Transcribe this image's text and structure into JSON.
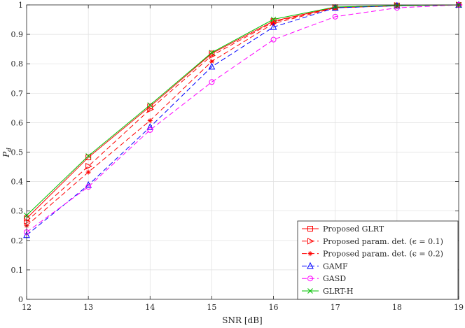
{
  "chart_data": {
    "type": "line",
    "title": "",
    "xlabel": "SNR [dB]",
    "ylabel": "P_d",
    "xlim": [
      12,
      19
    ],
    "ylim": [
      0,
      1
    ],
    "x": [
      12,
      13,
      14,
      15,
      16,
      17,
      18,
      19
    ],
    "xticks": [
      "12",
      "13",
      "14",
      "15",
      "16",
      "17",
      "18",
      "19"
    ],
    "yticks": [
      "0",
      "0.1",
      "0.2",
      "0.3",
      "0.4",
      "0.5",
      "0.6",
      "0.7",
      "0.8",
      "0.9",
      "1"
    ],
    "grid": true,
    "legend_position": "bottom-right",
    "series": [
      {
        "name": "Proposed GLRT",
        "color": "#ff0000",
        "dash": "solid",
        "marker": "square",
        "values": [
          0.275,
          0.482,
          0.655,
          0.835,
          0.945,
          0.992,
          0.998,
          1.0
        ]
      },
      {
        "name": "Proposed param. det. (ϵ = 0.1)",
        "color": "#ff0000",
        "dash": "dashed",
        "marker": "triangle-right",
        "values": [
          0.265,
          0.452,
          0.645,
          0.828,
          0.942,
          0.991,
          0.998,
          1.0
        ]
      },
      {
        "name": "Proposed param. det. (ϵ = 0.2)",
        "color": "#ff0000",
        "dash": "dashed",
        "marker": "asterisk",
        "values": [
          0.25,
          0.432,
          0.607,
          0.808,
          0.937,
          0.99,
          0.997,
          1.0
        ]
      },
      {
        "name": "GAMF",
        "color": "#0000ff",
        "dash": "dashed",
        "marker": "triangle-up",
        "values": [
          0.218,
          0.388,
          0.585,
          0.79,
          0.925,
          0.99,
          0.997,
          1.0
        ]
      },
      {
        "name": "GASD",
        "color": "#ff00ff",
        "dash": "dashed",
        "marker": "circle",
        "values": [
          0.228,
          0.382,
          0.575,
          0.738,
          0.882,
          0.96,
          0.99,
          1.0
        ]
      },
      {
        "name": "GLRT-H",
        "color": "#00c000",
        "dash": "solid",
        "marker": "x",
        "values": [
          0.285,
          0.487,
          0.66,
          0.838,
          0.951,
          0.993,
          0.998,
          1.0
        ]
      }
    ]
  }
}
